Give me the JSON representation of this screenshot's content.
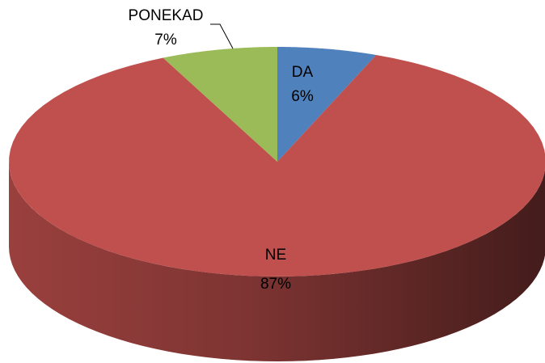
{
  "chart_data": {
    "type": "pie",
    "categories": [
      "DA",
      "NE",
      "PONEKAD"
    ],
    "values": [
      6,
      87,
      7
    ],
    "value_labels": [
      "6%",
      "87%",
      "7%"
    ],
    "colors": [
      "#4f81bd",
      "#c0504d",
      "#9bbb59"
    ]
  }
}
